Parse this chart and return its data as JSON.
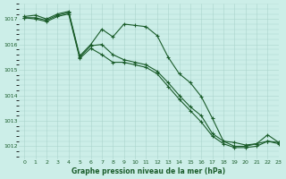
{
  "title": "Graphe pression niveau de la mer (hPa)",
  "background_color": "#cceee8",
  "grid_color": "#aad4cc",
  "line_color": "#1a5c2a",
  "xlim": [
    -0.5,
    23
  ],
  "ylim": [
    1011.5,
    1017.6
  ],
  "yticks": [
    1012,
    1013,
    1014,
    1015,
    1016,
    1017
  ],
  "xticks": [
    0,
    1,
    2,
    3,
    4,
    5,
    6,
    7,
    8,
    9,
    10,
    11,
    12,
    13,
    14,
    15,
    16,
    17,
    18,
    19,
    20,
    21,
    22,
    23
  ],
  "line1_x": [
    0,
    1,
    2,
    3,
    4,
    5,
    6,
    7,
    8,
    9,
    10,
    11,
    12,
    13,
    14,
    15,
    16,
    17,
    18,
    19,
    20,
    21,
    22,
    23
  ],
  "line1_y": [
    1017.1,
    1017.15,
    1017.0,
    1017.2,
    1017.3,
    1015.55,
    1016.0,
    1016.6,
    1016.3,
    1016.8,
    1016.75,
    1016.7,
    1016.35,
    1015.5,
    1014.85,
    1014.5,
    1013.95,
    1013.1,
    1012.2,
    1012.15,
    1012.05,
    1012.1,
    1012.45,
    1012.15
  ],
  "line2_x": [
    0,
    1,
    2,
    3,
    4,
    5,
    6,
    7,
    8,
    9,
    10,
    11,
    12,
    13,
    14,
    15,
    16,
    17,
    18,
    19,
    20,
    21,
    22,
    23
  ],
  "line2_y": [
    1017.05,
    1017.05,
    1016.95,
    1017.15,
    1017.25,
    1015.5,
    1015.95,
    1016.0,
    1015.6,
    1015.4,
    1015.3,
    1015.2,
    1014.95,
    1014.5,
    1014.0,
    1013.55,
    1013.2,
    1012.5,
    1012.2,
    1012.0,
    1012.0,
    1012.1,
    1012.2,
    1012.15
  ],
  "line3_x": [
    0,
    1,
    2,
    3,
    4,
    5,
    6,
    7,
    8,
    9,
    10,
    11,
    12,
    13,
    14,
    15,
    16,
    17,
    18,
    19,
    20,
    21,
    22,
    23
  ],
  "line3_y": [
    1017.05,
    1017.0,
    1016.9,
    1017.1,
    1017.2,
    1015.45,
    1015.85,
    1015.6,
    1015.3,
    1015.3,
    1015.2,
    1015.1,
    1014.85,
    1014.35,
    1013.85,
    1013.4,
    1012.95,
    1012.4,
    1012.1,
    1011.95,
    1011.95,
    1012.0,
    1012.2,
    1012.1
  ]
}
